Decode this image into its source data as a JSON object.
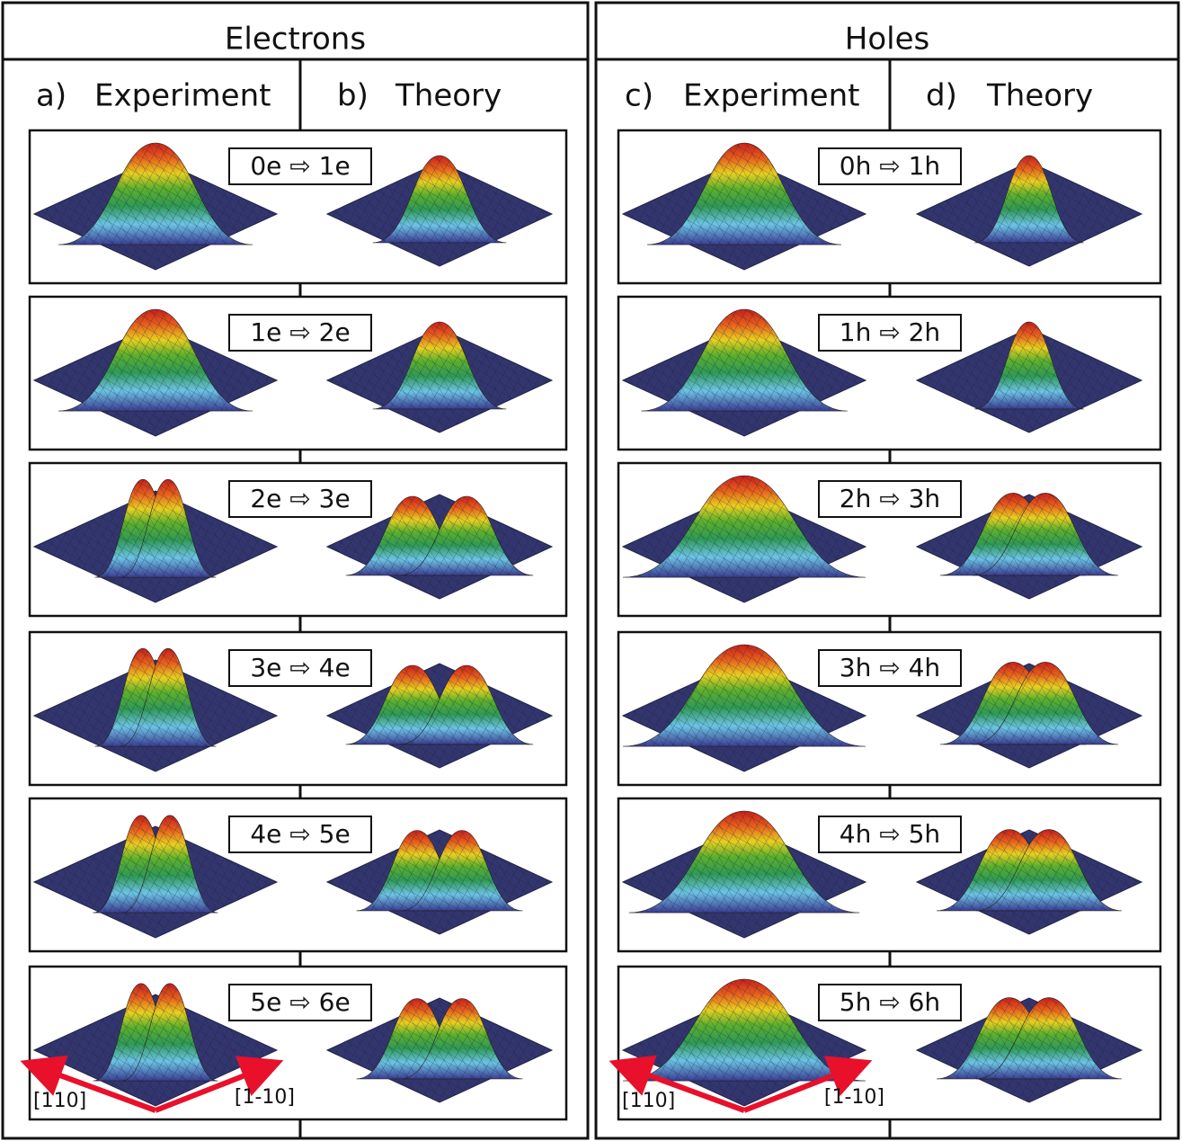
{
  "panels": [
    {
      "title": "Electrons",
      "columns": [
        {
          "letter": "a)",
          "label": "Experiment"
        },
        {
          "letter": "b)",
          "label": "Theory"
        }
      ],
      "transitions": [
        "0e ⇨ 1e",
        "1e ⇨ 2e",
        "2e ⇨ 3e",
        "3e ⇨ 4e",
        "4e ⇨ 5e",
        "5e ⇨ 6e"
      ],
      "axes": [
        "[110]",
        "[1-10]"
      ]
    },
    {
      "title": "Holes",
      "columns": [
        {
          "letter": "c)",
          "label": "Experiment"
        },
        {
          "letter": "d)",
          "label": "Theory"
        }
      ],
      "transitions": [
        "0h ⇨ 1h",
        "1h ⇨ 2h",
        "2h ⇨ 3h",
        "3h ⇨ 4h",
        "4h ⇨ 5h",
        "5h ⇨ 6h"
      ],
      "axes": [
        "[110]",
        "[1-10]"
      ]
    }
  ]
}
